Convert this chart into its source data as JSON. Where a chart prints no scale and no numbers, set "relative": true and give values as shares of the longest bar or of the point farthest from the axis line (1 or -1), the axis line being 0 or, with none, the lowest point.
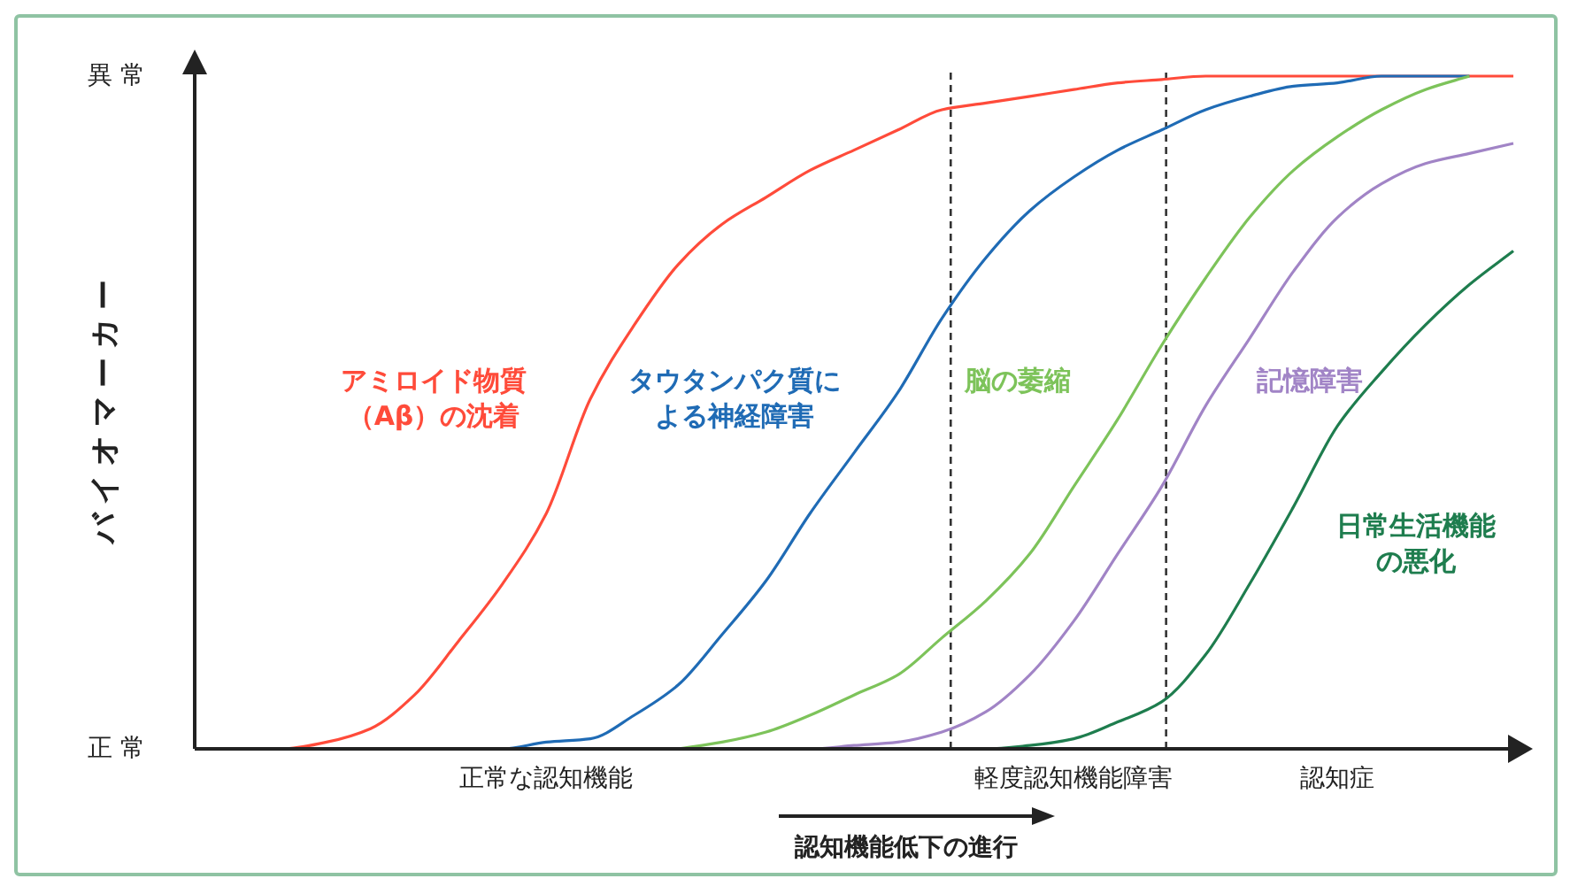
{
  "chart_data": {
    "type": "line",
    "relative": true,
    "ylabel": "バイオマーカー",
    "xlabel": "認知機能低下の進行",
    "categories": [
      null,
      null,
      null,
      null,
      null,
      null,
      null,
      null,
      "正常な認知機能",
      null,
      null,
      null,
      null,
      null,
      null,
      null,
      null,
      null,
      null,
      null,
      "軽度認知機能障害",
      null,
      null,
      null,
      null,
      null,
      "認知症",
      null,
      null,
      null,
      null
    ],
    "annotations": [
      "正 常",
      "異 常"
    ],
    "tick_labels": "x",
    "marker": "none",
    "line_style": "solid",
    "series": [
      {
        "name": "アミロイド物質（Aβ）の沈着",
        "color": "#ff4b3a",
        "values": [
          0,
          0,
          0,
          0.01,
          0.03,
          0.08,
          0.16,
          0.245,
          0.35,
          0.52,
          0.63,
          0.72,
          0.78,
          0.82,
          0.86,
          0.89,
          0.92,
          0.95,
          0.96,
          0.97,
          0.98,
          0.99,
          0.995,
          1,
          1,
          1,
          1,
          1,
          1,
          1,
          1
        ]
      },
      {
        "name": "タウタンパク質による神経障害",
        "color": "#1f6bb5",
        "values": [
          null,
          null,
          null,
          null,
          null,
          0,
          0,
          0,
          0.01,
          0.015,
          0.05,
          0.095,
          0.17,
          0.25,
          0.35,
          0.44,
          0.53,
          0.64,
          0.73,
          0.8,
          0.85,
          0.89,
          0.92,
          0.95,
          0.97,
          0.985,
          0.99,
          1,
          1,
          1,
          null
        ]
      },
      {
        "name": "脳の萎縮",
        "color": "#7dc35a",
        "values": [
          null,
          null,
          null,
          null,
          null,
          null,
          null,
          null,
          null,
          null,
          null,
          0,
          0.01,
          0.025,
          0.05,
          0.08,
          0.11,
          0.165,
          0.22,
          0.29,
          0.39,
          0.49,
          0.6,
          0.7,
          0.79,
          0.86,
          0.91,
          0.95,
          0.98,
          1,
          null
        ]
      },
      {
        "name": "記憶障害",
        "color": "#a184c6",
        "values": [
          null,
          null,
          null,
          null,
          null,
          null,
          null,
          null,
          null,
          null,
          null,
          null,
          null,
          0,
          0,
          0.005,
          0.01,
          0.025,
          0.055,
          0.11,
          0.19,
          0.29,
          0.39,
          0.51,
          0.61,
          0.71,
          0.79,
          0.84,
          0.87,
          0.885,
          0.9
        ]
      },
      {
        "name": "日常生活機能の悪化",
        "color": "#1e7d4e",
        "values": [
          null,
          null,
          null,
          null,
          null,
          null,
          null,
          null,
          null,
          null,
          null,
          null,
          null,
          null,
          null,
          null,
          null,
          0,
          0,
          0.005,
          0.015,
          0.04,
          0.07,
          0.14,
          0.245,
          0.36,
          0.48,
          0.56,
          0.63,
          0.69,
          0.74
        ]
      }
    ]
  }
}
